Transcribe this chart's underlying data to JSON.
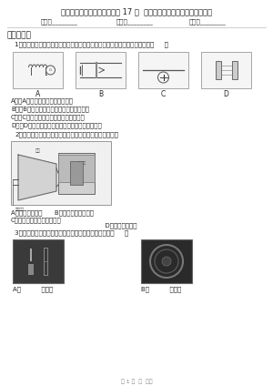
{
  "title": "新人教版九年級物理下冊《第 17 章  電動機與發電機》知識達標測試題",
  "info_fields": [
    "姓名：________",
    "班級：________",
    "成績：________"
  ],
  "section1": "一、單選題",
  "q1_text": "1．如圖所示的四個實驗，關于它們分別所展示的物理現象的描述，正確的是（     ）",
  "q1_labels": [
    "A",
    "B",
    "C",
    "D"
  ],
  "q1_options": [
    "A．圖A裝置用來展示電磁感應現象",
    "B．圖B裝置用來展示磁場對通電導線的作用",
    "C．圖C裝置用來展示電流周圍存在著磁場",
    "D．圖D裝置用來展示電磁鐵磁性強弱與電流的關系"
  ],
  "q2_text": "2．如圖所示，是動圈式揚聲器的結構示意圖，它的原理是",
  "q2_option_A": "A．電磁感應現象",
  "q2_option_B": "B．磁場對電流的作用",
  "q2_option_C": "C．把電信號轉換成聲音信號",
  "q2_option_D": "D．靜電感應現象",
  "q2_option_C2": "信號",
  "q3_text": "3．如圖所示用電器設備中，內部結構不含電動機的是（     ）",
  "q3_caption_A": "A．          電水壺",
  "q3_caption_B": "B．          洗衣機",
  "footer": "第 1 頁  共  分題",
  "bg_color": "#ffffff",
  "text_color": "#222222",
  "light_gray": "#d8d8d8",
  "mid_gray": "#aaaaaa",
  "dark_gray": "#555555",
  "title_fontsize": 6.0,
  "info_fontsize": 5.0,
  "section_fontsize": 6.5,
  "q_fontsize": 5.2,
  "opt_fontsize": 5.0,
  "footer_fontsize": 4.5
}
